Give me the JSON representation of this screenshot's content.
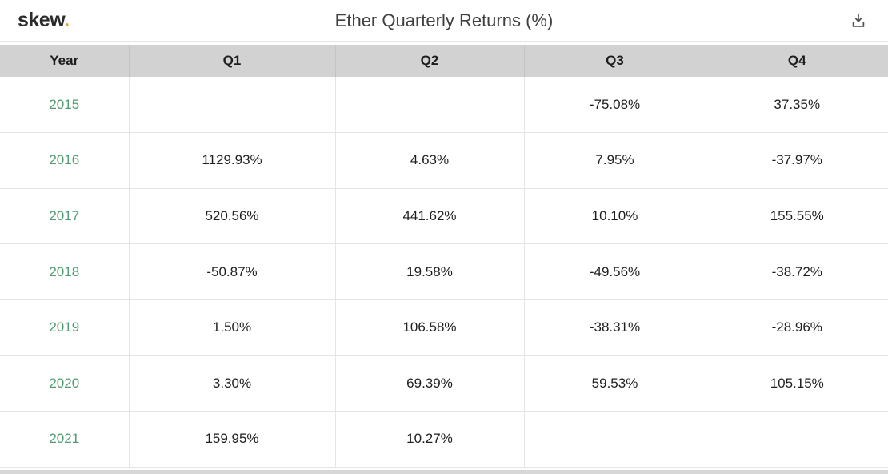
{
  "topbar": {
    "logo_text": "skew",
    "logo_dot": ".",
    "title": "Ether Quarterly Returns (%)",
    "download_icon": "download-icon"
  },
  "colors": {
    "year_link_green": "#4e9d6e",
    "header_background": "#d2d2d2",
    "logo_dot_orange": "#dda440",
    "cell_border": "#e4e4e4",
    "text": "#1f1f1f"
  },
  "table": {
    "columns": [
      "Year",
      "Q1",
      "Q2",
      "Q3",
      "Q4"
    ],
    "rows": [
      {
        "year": "2015",
        "values": [
          "",
          "",
          "-75.08%",
          "37.35%"
        ]
      },
      {
        "year": "2016",
        "values": [
          "1129.93%",
          "4.63%",
          "7.95%",
          "-37.97%"
        ]
      },
      {
        "year": "2017",
        "values": [
          "520.56%",
          "441.62%",
          "10.10%",
          "155.55%"
        ]
      },
      {
        "year": "2018",
        "values": [
          "-50.87%",
          "19.58%",
          "-49.56%",
          "-38.72%"
        ]
      },
      {
        "year": "2019",
        "values": [
          "1.50%",
          "106.58%",
          "-38.31%",
          "-28.96%"
        ]
      },
      {
        "year": "2020",
        "values": [
          "3.30%",
          "69.39%",
          "59.53%",
          "105.15%"
        ]
      },
      {
        "year": "2021",
        "values": [
          "159.95%",
          "10.27%",
          "",
          ""
        ]
      }
    ]
  }
}
